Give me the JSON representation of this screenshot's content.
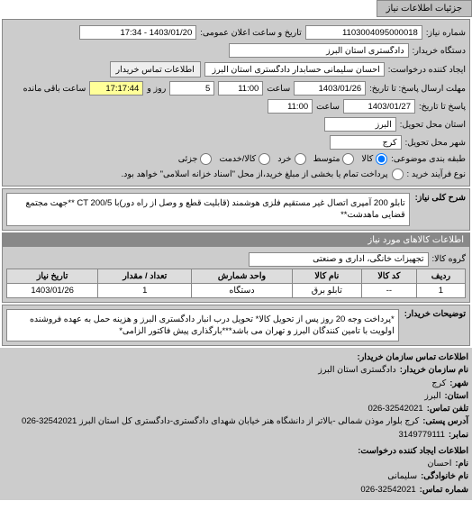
{
  "tab_label": "جزئیات اطلاعات نیاز",
  "fields": {
    "request_no_label": "شماره نیاز:",
    "request_no": "1103004095000018",
    "public_datetime_label": "تاریخ و ساعت اعلان عمومی:",
    "public_datetime": "1403/01/20 - 17:34",
    "buyer_org_label": "دستگاه خریدار:",
    "buyer_org": "دادگستری استان البرز",
    "requester_label": "ایجاد کننده درخواست:",
    "requester": "احسان سلیمانی حسابدار دادگستری استان البرز",
    "buyer_contact_btn": "اطلاعات تماس خریدار",
    "response_deadline_label": "مهلت ارسال پاسخ: تا تاریخ:",
    "response_date": "1403/01/26",
    "time_label": "ساعت",
    "response_time": "11:00",
    "days_label": "روز و",
    "remain_days": "5",
    "remain_time": "17:17:44",
    "remain_suffix": "ساعت باقی مانده",
    "history_label": "پاسخ تا تاریخ:",
    "history_date": "1403/01/27",
    "history_time": "11:00",
    "province_label": "استان محل تحویل:",
    "province": "البرز",
    "city_label": "شهر محل تحویل:",
    "city": "کرج",
    "category_label": "طبقه بندی موضوعی:",
    "cat_goods": "کالا",
    "cat_mid": "متوسط",
    "cat_small": "خرد",
    "cat_cash": "کالا/خدمت",
    "cat_partial": "جزئی",
    "process_label": "نوع فرآیند خرید :",
    "process_note": "پرداخت تمام یا بخشی از مبلغ خرید،از محل \"اسناد خزانه اسلامی\" خواهد بود."
  },
  "subject": {
    "header": "شرح کلی نیاز:",
    "text": "تابلو 200 آمپری اتصال غیر مستقیم فلزی هوشمند (قابلیت قطع و وصل از راه دور)با CT 200/5 **جهت مجتمع قضایی ماهدشت**"
  },
  "goods": {
    "header": "اطلاعات کالاهای مورد نیاز",
    "group_label": "گروه کالا:",
    "group_value": "تجهیزات خانگی، اداری و صنعتی",
    "columns": [
      "ردیف",
      "کد کالا",
      "نام کالا",
      "واحد شمارش",
      "تعداد / مقدار",
      "تاریخ نیاز"
    ],
    "rows": [
      [
        "1",
        "--",
        "تابلو برق",
        "دستگاه",
        "1",
        "1403/01/26"
      ]
    ]
  },
  "buyer_notes": {
    "header": "توضیحات خریدار:",
    "text": "*پرداخت وجه 20 روز پس از تحویل کالا* تحویل درب انبار دادگستری البرز و هزینه حمل به عهده فروشنده اولویت با تامین کنندگان البرز و تهران می باشد***بارگذاری پیش فاکتور الزامی*"
  },
  "contact": {
    "header": "اطلاعات تماس سازمان خریدار:",
    "org_label": "نام سازمان خریدار:",
    "org": "دادگستری استان البرز",
    "city_label": "شهر:",
    "city": "کرج",
    "province_label": "استان:",
    "province": "البرز",
    "phone_label": "تلفن تماس:",
    "phone": "026-32542021",
    "address_label": "آدرس پستی:",
    "address": "کرج بلوار موذن شمالی -بالاتر از دانشگاه هنر خیابان شهدای دادگستری-دادگستری کل استان البرز 32542021-026",
    "fax_label": "نمابر:",
    "fax": "3149779111",
    "creator_header": "اطلاعات ایجاد کننده درخواست:",
    "name_label": "نام:",
    "name": "احسان",
    "family_label": "نام خانوادگی:",
    "family": "سلیمانی",
    "phone2_label": "شماره تماس:",
    "phone2": "026-32542021"
  }
}
